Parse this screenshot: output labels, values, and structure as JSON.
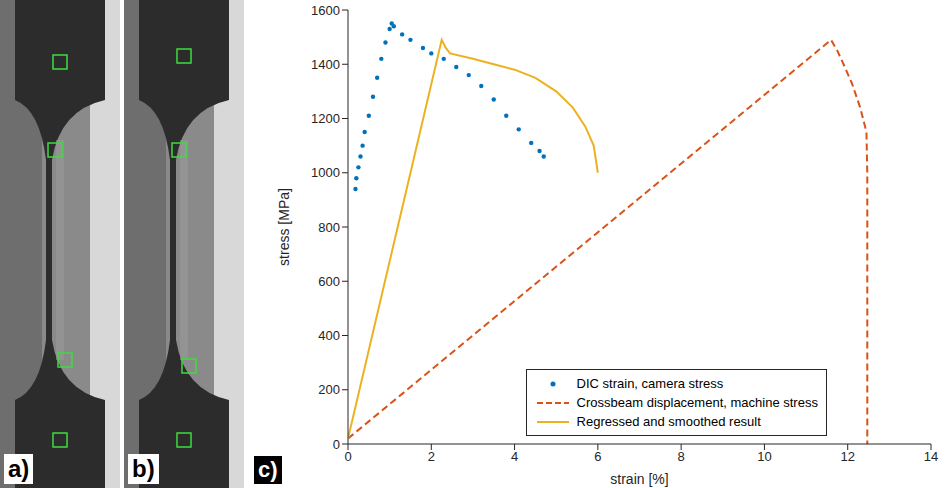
{
  "panel_labels": [
    "a)",
    "b)",
    "c)"
  ],
  "chart_data": {
    "type": "line",
    "x_label": "strain [%]",
    "y_label": "stress [MPa]",
    "xlim": [
      0,
      14
    ],
    "xticks": [
      0,
      2,
      4,
      6,
      8,
      10,
      12,
      14
    ],
    "ylim": [
      0,
      1600
    ],
    "yticks": [
      0,
      200,
      400,
      600,
      800,
      1000,
      1200,
      1400,
      1600
    ],
    "grid": false,
    "legend": "lower right",
    "series": [
      {
        "name": "DIC strain, camera stress",
        "type": "scatter",
        "color": "#0072bd",
        "marker": "dot",
        "x": [
          0.18,
          0.2,
          0.25,
          0.3,
          0.35,
          0.4,
          0.5,
          0.6,
          0.7,
          0.8,
          0.9,
          1.0,
          1.05,
          1.1,
          1.3,
          1.5,
          1.8,
          2.0,
          2.3,
          2.6,
          2.9,
          3.2,
          3.5,
          3.8,
          4.1,
          4.4,
          4.6,
          4.7
        ],
        "values": [
          940,
          980,
          1020,
          1060,
          1100,
          1150,
          1210,
          1280,
          1350,
          1420,
          1480,
          1530,
          1550,
          1540,
          1510,
          1490,
          1460,
          1440,
          1420,
          1390,
          1360,
          1320,
          1270,
          1210,
          1160,
          1110,
          1080,
          1060
        ]
      },
      {
        "name": "Crossbeam displacement, machine stress",
        "type": "line",
        "color": "#d95319",
        "line_style": "dashed",
        "x": [
          0,
          11.6,
          11.75,
          11.9,
          12.1,
          12.3,
          12.45,
          12.47,
          12.47,
          12.47
        ],
        "values": [
          20,
          1490,
          1450,
          1400,
          1330,
          1240,
          1150,
          1000,
          500,
          0
        ]
      },
      {
        "name": "Regressed and smoothed result",
        "type": "line",
        "color": "#edb120",
        "line_style": "solid",
        "x": [
          0,
          2.25,
          2.35,
          2.45,
          3,
          3.5,
          4,
          4.5,
          5,
          5.4,
          5.7,
          5.9,
          6
        ],
        "values": [
          20,
          1490,
          1460,
          1440,
          1420,
          1400,
          1380,
          1350,
          1300,
          1240,
          1170,
          1100,
          1000
        ]
      }
    ]
  }
}
